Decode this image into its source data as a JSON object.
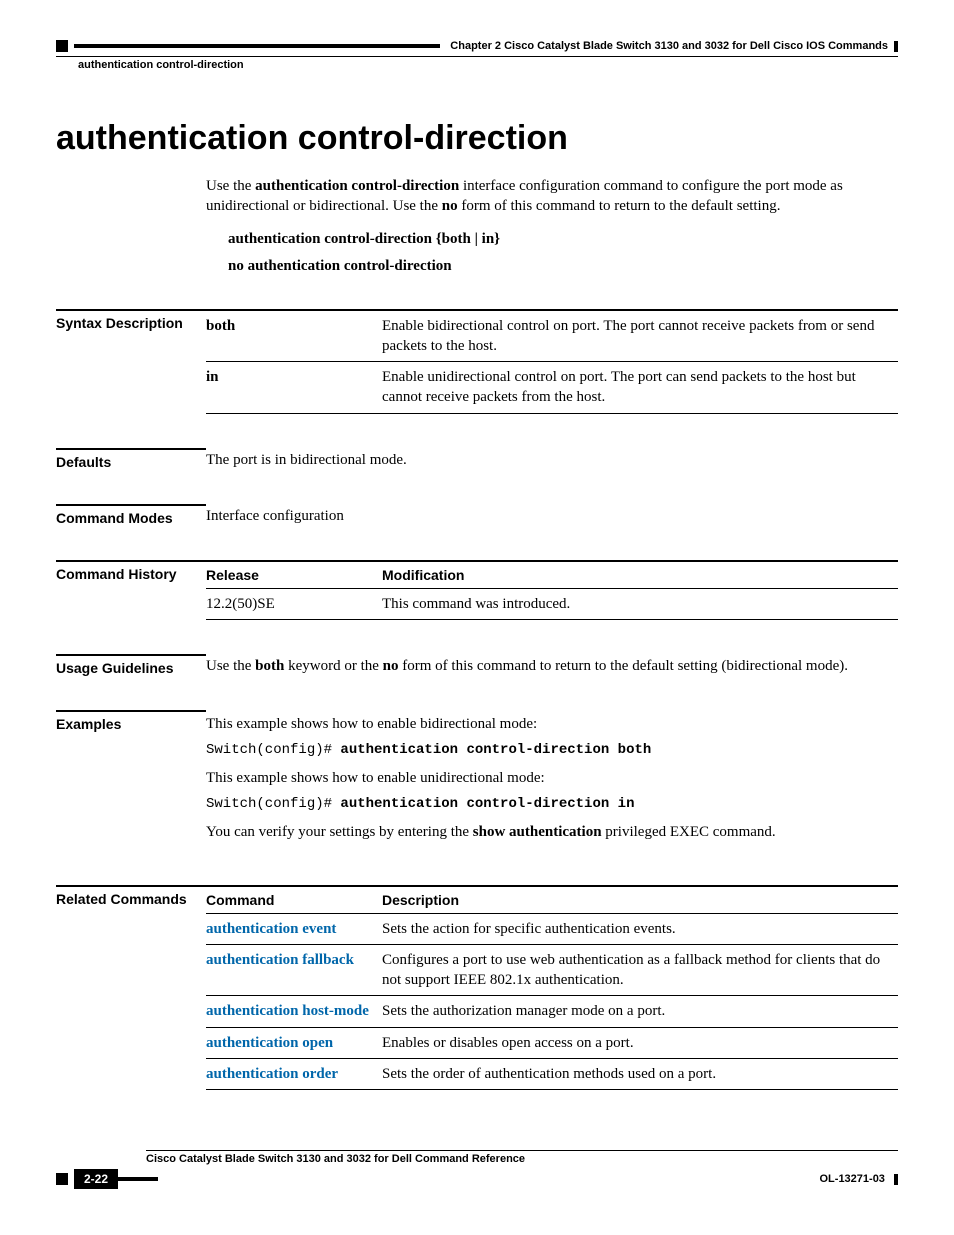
{
  "header": {
    "chapter": "Chapter 2      Cisco Catalyst Blade Switch 3130 and 3032 for Dell Cisco IOS Commands",
    "subtitle": "authentication control-direction"
  },
  "title": "authentication control-direction",
  "intro": {
    "p1_a": "Use the ",
    "p1_b": "authentication control-direction",
    "p1_c": " interface configuration command to configure the port mode as unidirectional or bidirectional. Use the ",
    "p1_d": "no",
    "p1_e": " form of this command to return to the default setting.",
    "syntax1": "authentication control-direction {both | in}",
    "syntax2": "no authentication control-direction"
  },
  "labels": {
    "syntax": "Syntax Description",
    "defaults": "Defaults",
    "modes": "Command Modes",
    "history": "Command History",
    "usage": "Usage Guidelines",
    "examples": "Examples",
    "related": "Related Commands"
  },
  "syntax_table": {
    "rows": [
      {
        "kw": "both",
        "desc": "Enable bidirectional control on port. The port cannot receive packets from or send packets to the host."
      },
      {
        "kw": "in",
        "desc": "Enable unidirectional control on port. The port can send packets to the host but cannot receive packets from the host."
      }
    ]
  },
  "defaults": "The port is in bidirectional mode.",
  "modes": "Interface configuration",
  "history": {
    "h1": "Release",
    "h2": "Modification",
    "rows": [
      {
        "c1": "12.2(50)SE",
        "c2": "This command was introduced."
      }
    ]
  },
  "usage": {
    "a": "Use the ",
    "b": "both",
    "c": " keyword or the ",
    "d": "no",
    "e": " form of this command to return to the default setting (bidirectional mode)."
  },
  "examples": {
    "p1": "This example shows how to enable bidirectional mode:",
    "c1a": "Switch(config)# ",
    "c1b": "authentication control-direction both",
    "p2": "This example shows how to enable unidirectional mode:",
    "c2a": "Switch(config)# ",
    "c2b": "authentication control-direction in",
    "p3a": "You can verify your settings by entering the ",
    "p3b": "show authentication",
    "p3c": " privileged EXEC command."
  },
  "related": {
    "h1": "Command",
    "h2": "Description",
    "rows": [
      {
        "cmd": "authentication event",
        "desc": "Sets the action for specific authentication events."
      },
      {
        "cmd": "authentication fallback",
        "desc": "Configures a port to use web authentication as a fallback method for clients that do not support IEEE 802.1x authentication."
      },
      {
        "cmd": "authentication host-mode",
        "desc": "Sets the authorization manager mode on a port."
      },
      {
        "cmd": "authentication open",
        "desc": "Enables or disables open access on a port."
      },
      {
        "cmd": "authentication order",
        "desc": "Sets the order of authentication methods used on a port."
      }
    ]
  },
  "footer": {
    "title": "Cisco Catalyst Blade Switch 3130 and 3032 for Dell Command Reference",
    "page": "2-22",
    "doc": "OL-13271-03"
  }
}
